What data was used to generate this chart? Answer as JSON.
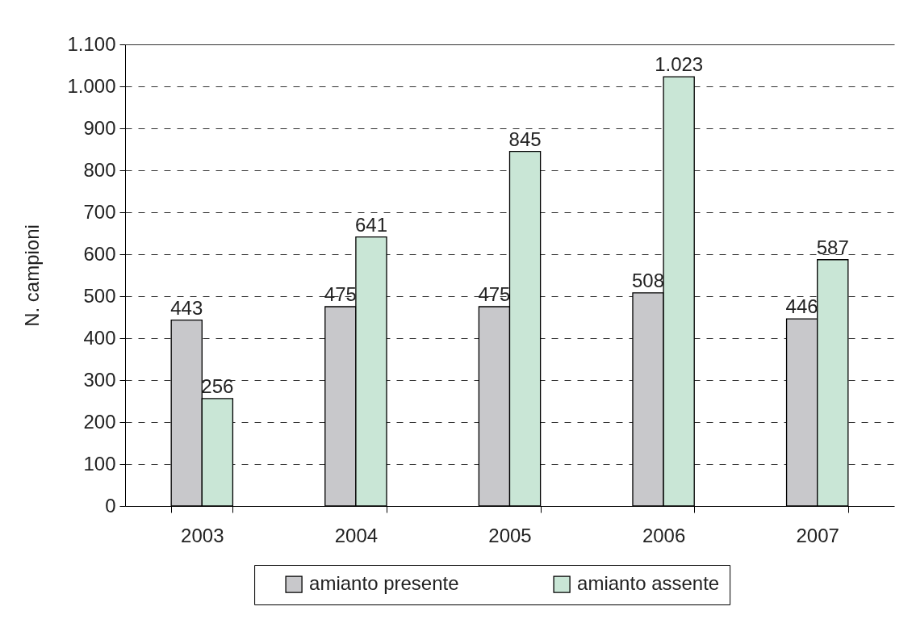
{
  "chart_data": {
    "type": "bar",
    "ylabel": "N. campioni",
    "categories": [
      "2003",
      "2004",
      "2005",
      "2006",
      "2007"
    ],
    "series": [
      {
        "name": "amianto presente",
        "color": "#c8c8cb",
        "values": [
          443,
          475,
          475,
          508,
          446
        ],
        "value_labels": [
          "443",
          "475",
          "475",
          "508",
          "446"
        ]
      },
      {
        "name": "amianto assente",
        "color": "#c9e6d6",
        "values": [
          256,
          641,
          845,
          1023,
          587
        ],
        "value_labels": [
          "256",
          "641",
          "845",
          "1.023",
          "587"
        ]
      }
    ],
    "ylim": [
      0,
      1100
    ],
    "yticks": [
      0,
      100,
      200,
      300,
      400,
      500,
      600,
      700,
      800,
      900,
      {
        "value": 1000,
        "label": "1.000"
      },
      {
        "value": 1100,
        "label": "1.100"
      }
    ],
    "grid": "y",
    "legend": "bottom"
  }
}
